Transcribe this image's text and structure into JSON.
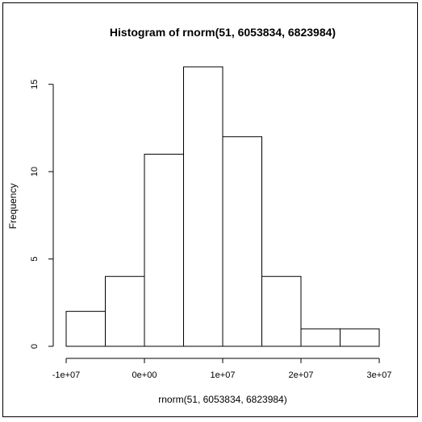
{
  "chart_data": {
    "type": "bar",
    "title": "Histogram of rnorm(51, 6053834, 6823984)",
    "xlabel": "rnorm(51, 6053834, 6823984)",
    "ylabel": "Frequency",
    "bins": [
      {
        "from": -10000000,
        "to": -5000000,
        "count": 2
      },
      {
        "from": -5000000,
        "to": 0,
        "count": 4
      },
      {
        "from": 0,
        "to": 5000000,
        "count": 11
      },
      {
        "from": 5000000,
        "to": 10000000,
        "count": 16
      },
      {
        "from": 10000000,
        "to": 15000000,
        "count": 12
      },
      {
        "from": 15000000,
        "to": 20000000,
        "count": 4
      },
      {
        "from": 20000000,
        "to": 25000000,
        "count": 1
      },
      {
        "from": 25000000,
        "to": 30000000,
        "count": 1
      }
    ],
    "xlim": [
      -10000000,
      30000000
    ],
    "ylim": [
      0,
      16
    ],
    "x_ticks": [
      {
        "value": -10000000,
        "label": "-1e+07"
      },
      {
        "value": 0,
        "label": "0e+00"
      },
      {
        "value": 10000000,
        "label": "1e+07"
      },
      {
        "value": 20000000,
        "label": "2e+07"
      },
      {
        "value": 30000000,
        "label": "3e+07"
      }
    ],
    "y_ticks": [
      {
        "value": 0,
        "label": "0"
      },
      {
        "value": 5,
        "label": "5"
      },
      {
        "value": 10,
        "label": "10"
      },
      {
        "value": 15,
        "label": "15"
      }
    ],
    "grid": false,
    "colors": {
      "bar_fill": "#ffffff",
      "bar_stroke": "#000000"
    }
  }
}
